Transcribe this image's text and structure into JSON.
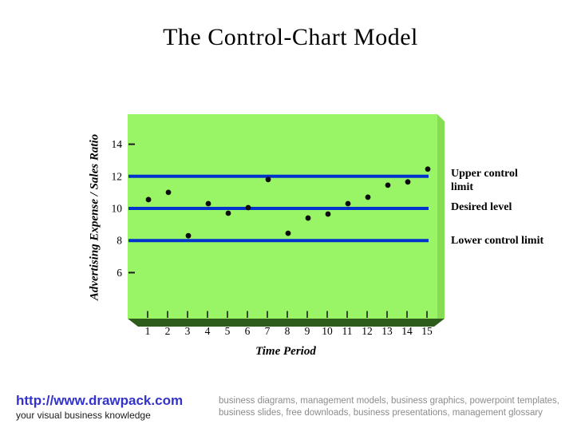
{
  "title": "The Control-Chart Model",
  "colors": {
    "plot_green": "#99F566",
    "side_wall_green": "#84DD52",
    "floor_green": "#2E5C1C",
    "control_line_blue": "#0033CC",
    "point_black": "#0d0d0d",
    "tick_black": "#1a1a1a",
    "link_blue": "#3333CC",
    "footer_gray": "#8C8C8C"
  },
  "chart_data": {
    "type": "scatter",
    "xlabel": "Time Period",
    "ylabel": "Advertising Expense / Sales Ratio",
    "x": [
      1,
      2,
      3,
      4,
      5,
      6,
      7,
      8,
      9,
      10,
      11,
      12,
      13,
      14,
      15
    ],
    "values": [
      10.55,
      11.0,
      8.3,
      10.3,
      9.7,
      10.05,
      11.8,
      8.45,
      9.4,
      9.65,
      10.3,
      10.7,
      11.45,
      11.65,
      12.45
    ],
    "yticks": [
      14,
      12,
      10,
      8,
      6
    ],
    "xticks": [
      1,
      2,
      3,
      4,
      5,
      6,
      7,
      8,
      9,
      10,
      11,
      12,
      13,
      14,
      15
    ],
    "ylim": [
      4,
      15
    ],
    "grid": false,
    "legend": "none",
    "control_lines": [
      {
        "value": 12,
        "label": "Upper control limit"
      },
      {
        "value": 10,
        "label": "Desired level"
      },
      {
        "value": 8,
        "label": "Lower control limit"
      }
    ]
  },
  "footer": {
    "link": "http://www.drawpack.com",
    "tagline": "your visual business knowledge",
    "description": "business diagrams, management models, business graphics, powerpoint templates, business slides, free downloads, business presentations, management glossary"
  }
}
